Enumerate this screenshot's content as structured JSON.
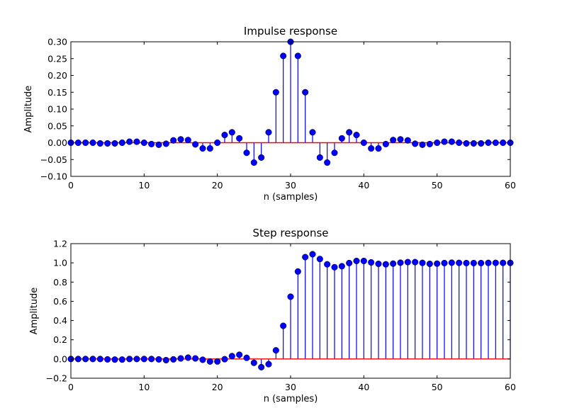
{
  "chart_data": [
    {
      "type": "stem",
      "title": "Impulse response",
      "xlabel": "n (samples)",
      "ylabel": "Amplitude",
      "xlim": [
        0,
        60
      ],
      "ylim": [
        -0.1,
        0.3
      ],
      "xticks": [
        "0",
        "10",
        "20",
        "30",
        "40",
        "50",
        "60"
      ],
      "yticks": [
        "−0.10",
        "−0.05",
        "0.00",
        "0.05",
        "0.10",
        "0.15",
        "0.20",
        "0.25",
        "0.30"
      ],
      "grid": false,
      "x": [
        0,
        1,
        2,
        3,
        4,
        5,
        6,
        7,
        8,
        9,
        10,
        11,
        12,
        13,
        14,
        15,
        16,
        17,
        18,
        19,
        20,
        21,
        22,
        23,
        24,
        25,
        26,
        27,
        28,
        29,
        30,
        31,
        32,
        33,
        34,
        35,
        36,
        37,
        38,
        39,
        40,
        41,
        42,
        43,
        44,
        45,
        46,
        47,
        48,
        49,
        50,
        51,
        52,
        53,
        54,
        55,
        56,
        57,
        58,
        59,
        60
      ],
      "values": [
        0,
        0,
        0,
        0,
        -0.002,
        -0.002,
        -0.002,
        0,
        0.003,
        0.003,
        0,
        -0.004,
        -0.006,
        -0.003,
        0.007,
        0.01,
        0.008,
        -0.005,
        -0.017,
        -0.017,
        0,
        0.023,
        0.031,
        0.013,
        -0.03,
        -0.059,
        -0.044,
        0.031,
        0.15,
        0.258,
        0.3,
        0.258,
        0.15,
        0.031,
        -0.044,
        -0.059,
        -0.03,
        0.013,
        0.031,
        0.023,
        0,
        -0.017,
        -0.017,
        -0.004,
        0.008,
        0.01,
        0.007,
        -0.003,
        -0.006,
        -0.004,
        0,
        0.003,
        0.003,
        0,
        -0.002,
        -0.002,
        -0.002,
        0,
        0,
        0,
        0
      ],
      "colors": {
        "stem": "#0000ff",
        "marker": "#0000ff",
        "baseline": "#ff0000"
      }
    },
    {
      "type": "stem",
      "title": "Step response",
      "xlabel": "n (samples)",
      "ylabel": "Amplitude",
      "xlim": [
        0,
        60
      ],
      "ylim": [
        -0.2,
        1.2
      ],
      "xticks": [
        "0",
        "10",
        "20",
        "30",
        "40",
        "50",
        "60"
      ],
      "yticks": [
        "−0.2",
        "0.0",
        "0.2",
        "0.4",
        "0.6",
        "0.8",
        "1.0",
        "1.2"
      ],
      "grid": false,
      "x": [
        0,
        1,
        2,
        3,
        4,
        5,
        6,
        7,
        8,
        9,
        10,
        11,
        12,
        13,
        14,
        15,
        16,
        17,
        18,
        19,
        20,
        21,
        22,
        23,
        24,
        25,
        26,
        27,
        28,
        29,
        30,
        31,
        32,
        33,
        34,
        35,
        36,
        37,
        38,
        39,
        40,
        41,
        42,
        43,
        44,
        45,
        46,
        47,
        48,
        49,
        50,
        51,
        52,
        53,
        54,
        55,
        56,
        57,
        58,
        59,
        60
      ],
      "values": [
        0,
        0,
        0,
        0,
        0,
        -0.004,
        -0.006,
        -0.006,
        0,
        0,
        0,
        0,
        -0.004,
        -0.012,
        -0.004,
        0.006,
        0.014,
        0.006,
        -0.008,
        -0.026,
        -0.026,
        -0.002,
        0.03,
        0.044,
        0.012,
        -0.04,
        -0.085,
        -0.054,
        0.09,
        0.345,
        0.648,
        0.91,
        1.06,
        1.09,
        1.04,
        0.985,
        0.955,
        0.965,
        0.998,
        1.02,
        1.02,
        1.005,
        0.99,
        0.985,
        0.992,
        1.002,
        1.008,
        1.008,
        1.0,
        0.99,
        0.992,
        0.998,
        1.002,
        1.0,
        0.998,
        0.998,
        0.998,
        1.0,
        1.0,
        1.0,
        1.0
      ],
      "colors": {
        "stem": "#0000ff",
        "marker": "#0000ff",
        "baseline": "#ff0000"
      }
    }
  ]
}
